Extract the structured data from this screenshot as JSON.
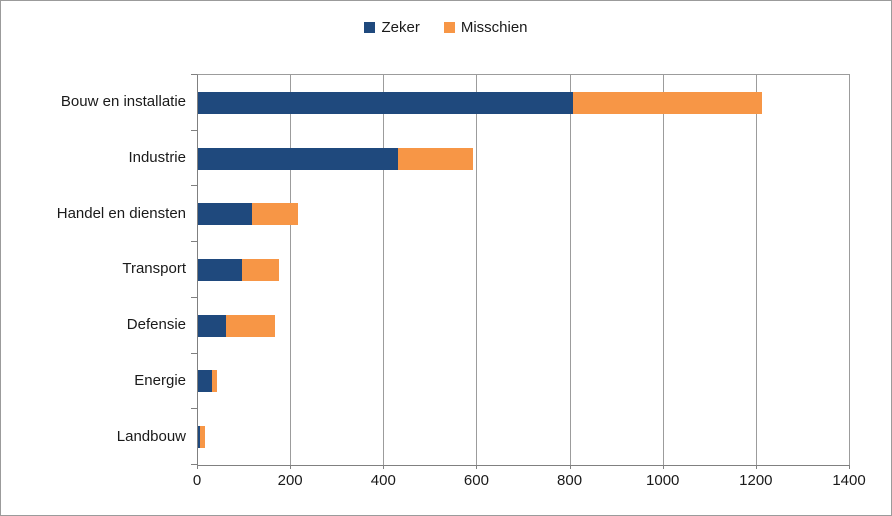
{
  "chart_data": {
    "type": "bar",
    "orientation": "horizontal",
    "stacked": true,
    "title": "",
    "categories": [
      "Bouw en installatie",
      "Industrie",
      "Handel en diensten",
      "Transport",
      "Defensie",
      "Energie",
      "Landbouw"
    ],
    "series": [
      {
        "name": "Zeker",
        "color": "#1F497D",
        "values": [
          805,
          430,
          115,
          95,
          60,
          30,
          5
        ]
      },
      {
        "name": "Misschien",
        "color": "#F79646",
        "values": [
          405,
          160,
          100,
          80,
          105,
          10,
          10
        ]
      }
    ],
    "totals": [
      1210,
      590,
      215,
      175,
      165,
      40,
      15
    ],
    "xlim": [
      0,
      1400
    ],
    "x_ticks": [
      0,
      200,
      400,
      600,
      800,
      1000,
      1200,
      1400
    ],
    "xlabel": "",
    "ylabel": "",
    "legend_position": "top-center",
    "grid": "vertical-only"
  },
  "style": {
    "gridline_color": "#9c9c9c",
    "axis_color": "#808080",
    "border_color": "#9b9b9b",
    "text_color": "#1a1a1a",
    "background": "#ffffff"
  }
}
